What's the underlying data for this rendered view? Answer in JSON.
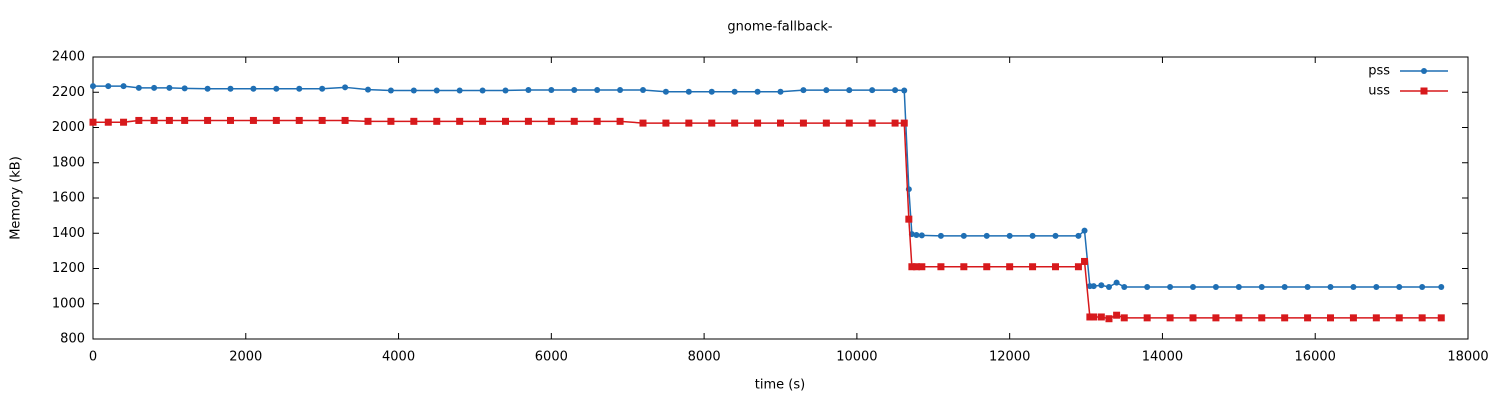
{
  "chart_data": {
    "type": "line",
    "title": "gnome-fallback-",
    "x_label": "time (s)",
    "y_label": "Memory (kB)",
    "x": [
      0,
      200,
      400,
      600,
      800,
      1000,
      1200,
      1500,
      1800,
      2100,
      2400,
      2700,
      3000,
      3300,
      3600,
      3900,
      4200,
      4500,
      4800,
      5100,
      5400,
      5700,
      6000,
      6300,
      6600,
      6900,
      7200,
      7500,
      7800,
      8100,
      8400,
      8700,
      9000,
      9300,
      9600,
      9900,
      10200,
      10500,
      10620,
      10680,
      10720,
      10780,
      10850,
      11100,
      11400,
      11700,
      12000,
      12300,
      12600,
      12900,
      12980,
      13050,
      13100,
      13200,
      13300,
      13400,
      13500,
      13800,
      14100,
      14400,
      14700,
      15000,
      15300,
      15600,
      15900,
      16200,
      16500,
      16800,
      17100,
      17400,
      17650
    ],
    "series": [
      {
        "name": "pss",
        "color": "#1f6fb4",
        "marker": "circle",
        "values": [
          2235,
          2235,
          2235,
          2225,
          2225,
          2225,
          2222,
          2220,
          2220,
          2220,
          2220,
          2220,
          2220,
          2228,
          2215,
          2210,
          2210,
          2210,
          2210,
          2210,
          2210,
          2213,
          2213,
          2213,
          2213,
          2213,
          2213,
          2203,
          2203,
          2203,
          2203,
          2203,
          2203,
          2212,
          2212,
          2212,
          2212,
          2212,
          2210,
          1650,
          1395,
          1390,
          1388,
          1385,
          1385,
          1385,
          1385,
          1385,
          1385,
          1385,
          1415,
          1100,
          1100,
          1105,
          1095,
          1120,
          1095,
          1095,
          1095,
          1095,
          1095,
          1095,
          1095,
          1095,
          1095,
          1095,
          1095,
          1095,
          1095,
          1095,
          1095
        ]
      },
      {
        "name": "uss",
        "color": "#d7191c",
        "marker": "square",
        "values": [
          2030,
          2030,
          2030,
          2040,
          2040,
          2040,
          2040,
          2040,
          2040,
          2040,
          2040,
          2040,
          2040,
          2040,
          2035,
          2035,
          2035,
          2035,
          2035,
          2035,
          2035,
          2035,
          2035,
          2035,
          2035,
          2035,
          2025,
          2025,
          2025,
          2025,
          2025,
          2025,
          2025,
          2025,
          2025,
          2025,
          2025,
          2025,
          2025,
          1480,
          1210,
          1210,
          1210,
          1210,
          1210,
          1210,
          1210,
          1210,
          1210,
          1210,
          1240,
          925,
          925,
          925,
          915,
          935,
          920,
          920,
          920,
          920,
          920,
          920,
          920,
          920,
          920,
          920,
          920,
          920,
          920,
          920,
          920
        ]
      }
    ],
    "xlim": [
      0,
      18000
    ],
    "xticks": [
      0,
      2000,
      4000,
      6000,
      8000,
      10000,
      12000,
      14000,
      16000,
      18000
    ],
    "ylim": [
      800,
      2400
    ],
    "yticks": [
      800,
      1000,
      1200,
      1400,
      1600,
      1800,
      2000,
      2200,
      2400
    ],
    "legend": "top-right"
  }
}
